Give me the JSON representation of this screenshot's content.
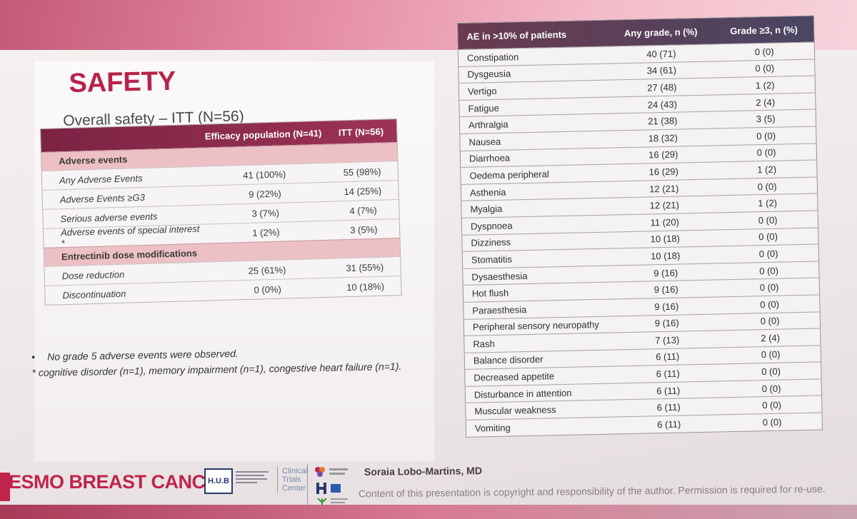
{
  "slide": {
    "title": "SAFETY",
    "subtitle": "Overall safety – ITT (N=56)"
  },
  "left_table": {
    "headers": [
      "",
      "Efficacy population (N=41)",
      "ITT (N=56)"
    ],
    "sections": [
      {
        "title": "Adverse events",
        "rows": [
          [
            "Any Adverse Events",
            "41 (100%)",
            "55 (98%)"
          ],
          [
            "Adverse Events ≥G3",
            "9 (22%)",
            "14 (25%)"
          ],
          [
            "Serious adverse events",
            "3 (7%)",
            "4 (7%)"
          ],
          [
            "Adverse events of special interest *",
            "1 (2%)",
            "3 (5%)"
          ]
        ]
      },
      {
        "title": "Entrectinib dose modifications",
        "rows": [
          [
            "Dose reduction",
            "25 (61%)",
            "31 (55%)"
          ],
          [
            "Discontinuation",
            "0 (0%)",
            "10 (18%)"
          ]
        ]
      }
    ]
  },
  "footnotes": {
    "bullet": "•",
    "line1": "No grade 5 adverse events were observed.",
    "line2": "* cognitive disorder (n=1), memory impairment (n=1), congestive heart failure (n=1)."
  },
  "right_table": {
    "headers": [
      "AE in >10% of patients",
      "Any grade, n (%)",
      "Grade ≥3, n (%)"
    ],
    "rows": [
      [
        "Constipation",
        "40 (71)",
        "0 (0)"
      ],
      [
        "Dysgeusia",
        "34 (61)",
        "0 (0)"
      ],
      [
        "Vertigo",
        "27 (48)",
        "1 (2)"
      ],
      [
        "Fatigue",
        "24 (43)",
        "2 (4)"
      ],
      [
        "Arthralgia",
        "21 (38)",
        "3 (5)"
      ],
      [
        "Nausea",
        "18 (32)",
        "0 (0)"
      ],
      [
        "Diarrhoea",
        "16 (29)",
        "0 (0)"
      ],
      [
        "Oedema peripheral",
        "16 (29)",
        "1 (2)"
      ],
      [
        "Asthenia",
        "12 (21)",
        "0 (0)"
      ],
      [
        "Myalgia",
        "12 (21)",
        "1 (2)"
      ],
      [
        "Dyspnoea",
        "11 (20)",
        "0 (0)"
      ],
      [
        "Dizziness",
        "10 (18)",
        "0 (0)"
      ],
      [
        "Stomatitis",
        "10 (18)",
        "0 (0)"
      ],
      [
        "Dysaesthesia",
        "9 (16)",
        "0 (0)"
      ],
      [
        "Hot flush",
        "9 (16)",
        "0 (0)"
      ],
      [
        "Paraesthesia",
        "9 (16)",
        "0 (0)"
      ],
      [
        "Peripheral sensory neuropathy",
        "9 (16)",
        "0 (0)"
      ],
      [
        "Rash",
        "7 (13)",
        "2 (4)"
      ],
      [
        "Balance disorder",
        "6 (11)",
        "0 (0)"
      ],
      [
        "Decreased appetite",
        "6 (11)",
        "0 (0)"
      ],
      [
        "Disturbance in attention",
        "6 (11)",
        "0 (0)"
      ],
      [
        "Muscular weakness",
        "6 (11)",
        "0 (0)"
      ],
      [
        "Vomiting",
        "6 (11)",
        "0 (0)"
      ]
    ]
  },
  "footer": {
    "esmo": "ESMO BREAST CANCER",
    "hub": "H.U.B",
    "ctc_line1": "Clinical",
    "ctc_line2": "Trials",
    "ctc_line3": "Center",
    "author": "Soraia Lobo-Martins, MD",
    "copyright": "Content of this presentation is copyright and responsibility of the author. Permission is required for re-use."
  },
  "colors": {
    "title_accent": "#b8234a",
    "left_header": "#7c2344",
    "section_band": "#ecc0c4",
    "right_header": "#5a3e58",
    "esmo_brand": "#c0244a"
  }
}
